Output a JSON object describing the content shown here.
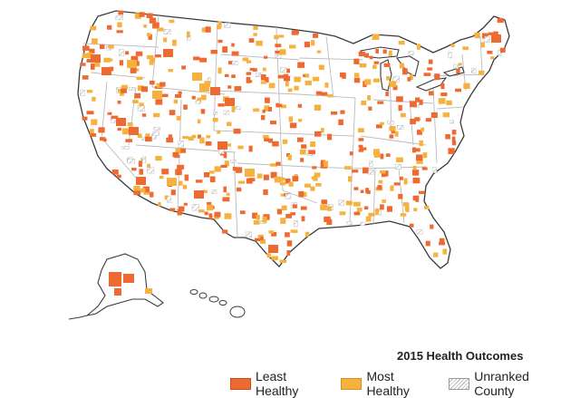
{
  "legend": {
    "title": "2015 Health Outcomes",
    "items": [
      {
        "label": "Least Healthy",
        "key": "least",
        "color": "#ee6a33"
      },
      {
        "label": "Most Healthy",
        "key": "most",
        "color": "#f6b23e"
      },
      {
        "label": "Unranked County",
        "key": "unranked",
        "color": "#b4b4b4"
      }
    ]
  },
  "colors": {
    "least_healthy": "#ee6a33",
    "most_healthy": "#f6b23e",
    "border": "#bcbcbc",
    "coast": "#3a3a3a"
  }
}
